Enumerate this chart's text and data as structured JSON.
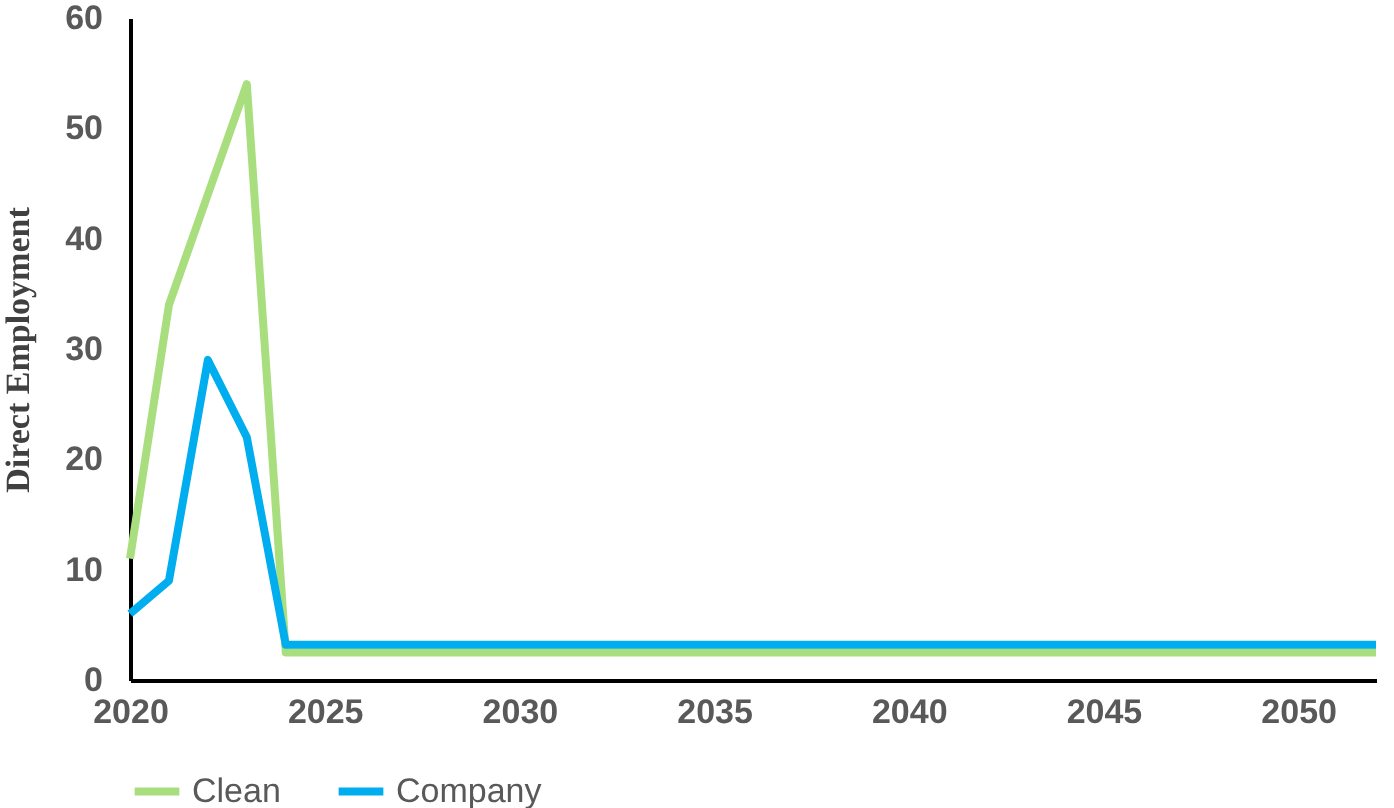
{
  "chart_data": {
    "type": "line",
    "ylabel": "Direct Employment",
    "x": [
      2020,
      2021,
      2022,
      2023,
      2024,
      2025,
      2026,
      2027,
      2028,
      2029,
      2030,
      2031,
      2032,
      2033,
      2034,
      2035,
      2036,
      2037,
      2038,
      2039,
      2040,
      2041,
      2042,
      2043,
      2044,
      2045,
      2046,
      2047,
      2048,
      2049,
      2050,
      2051,
      2052
    ],
    "series": [
      {
        "name": "Clean",
        "color": "#a9de7f",
        "values": [
          11,
          34,
          44,
          54,
          2.5,
          2.5,
          2.5,
          2.5,
          2.5,
          2.5,
          2.5,
          2.5,
          2.5,
          2.5,
          2.5,
          2.5,
          2.5,
          2.5,
          2.5,
          2.5,
          2.5,
          2.5,
          2.5,
          2.5,
          2.5,
          2.5,
          2.5,
          2.5,
          2.5,
          2.5,
          2.5,
          2.5,
          2.5
        ]
      },
      {
        "name": "Company",
        "color": "#00aeef",
        "values": [
          6,
          9,
          29,
          22,
          3.2,
          3.2,
          3.2,
          3.2,
          3.2,
          3.2,
          3.2,
          3.2,
          3.2,
          3.2,
          3.2,
          3.2,
          3.2,
          3.2,
          3.2,
          3.2,
          3.2,
          3.2,
          3.2,
          3.2,
          3.2,
          3.2,
          3.2,
          3.2,
          3.2,
          3.2,
          3.2,
          3.2,
          3.2
        ]
      }
    ],
    "xlim": [
      2020,
      2052
    ],
    "xticks": [
      2020,
      2025,
      2030,
      2035,
      2040,
      2045,
      2050
    ],
    "ylim": [
      0,
      60
    ],
    "yticks": [
      0,
      10,
      20,
      30,
      40,
      50,
      60
    ],
    "grid": false,
    "legend": "bottom",
    "marker": "none",
    "line_style": "solid"
  }
}
